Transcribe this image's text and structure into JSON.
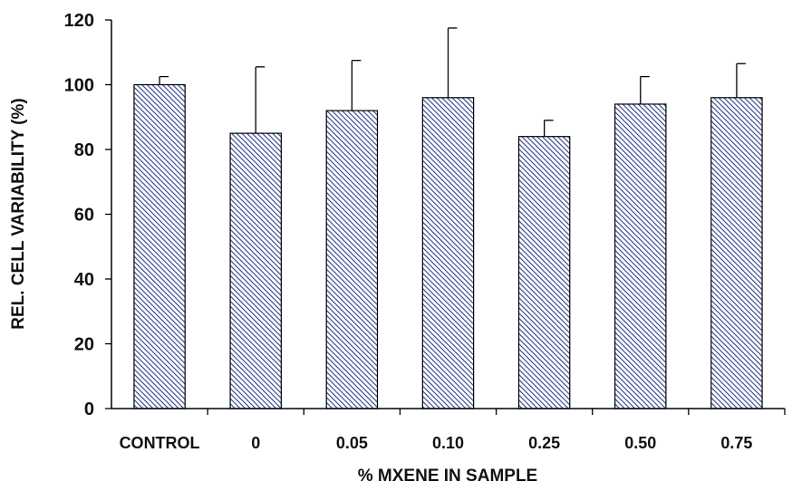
{
  "chart_data": {
    "type": "bar",
    "title": "",
    "xlabel": "% MXENE IN SAMPLE",
    "ylabel": "REL. CELL VARIABILITY (%)",
    "categories": [
      "CONTROL",
      "0",
      "0.05",
      "0.10",
      "0.25",
      "0.50",
      "0.75"
    ],
    "values": [
      100,
      85,
      92,
      96,
      84,
      94,
      96
    ],
    "error_upper": [
      2.5,
      20.5,
      15.5,
      21.5,
      5,
      8.5,
      10.5
    ],
    "ylim": [
      0,
      120
    ],
    "yticks": [
      "0",
      "20",
      "40",
      "60",
      "80",
      "100",
      "120"
    ],
    "grid": false,
    "legend": "none",
    "bar_fill": "diagonal-hatch",
    "colors": {
      "hatch": "#2b3f8c",
      "bar_background": "#ffffff",
      "bar_outline": "#000000",
      "axis": "#000000",
      "text": "#111111"
    }
  }
}
